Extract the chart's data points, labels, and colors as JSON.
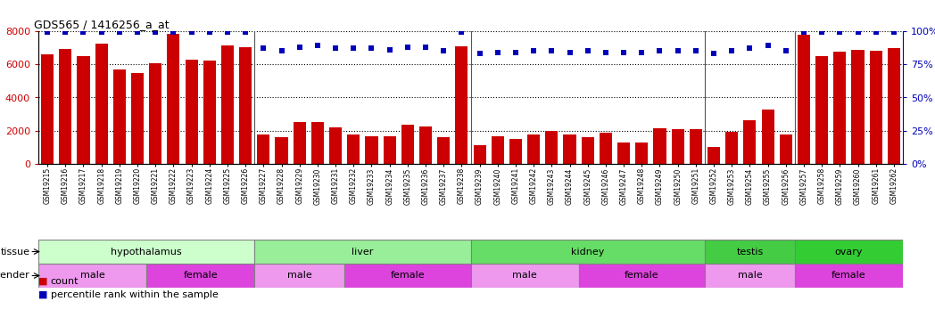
{
  "title": "GDS565 / 1416256_a_at",
  "samples": [
    "GSM19215",
    "GSM19216",
    "GSM19217",
    "GSM19218",
    "GSM19219",
    "GSM19220",
    "GSM19221",
    "GSM19222",
    "GSM19223",
    "GSM19224",
    "GSM19225",
    "GSM19226",
    "GSM19227",
    "GSM19228",
    "GSM19229",
    "GSM19230",
    "GSM19231",
    "GSM19232",
    "GSM19233",
    "GSM19234",
    "GSM19235",
    "GSM19236",
    "GSM19237",
    "GSM19238",
    "GSM19239",
    "GSM19240",
    "GSM19241",
    "GSM19242",
    "GSM19243",
    "GSM19244",
    "GSM19245",
    "GSM19246",
    "GSM19247",
    "GSM19248",
    "GSM19249",
    "GSM19250",
    "GSM19251",
    "GSM19252",
    "GSM19253",
    "GSM19254",
    "GSM19255",
    "GSM19256",
    "GSM19257",
    "GSM19258",
    "GSM19259",
    "GSM19260",
    "GSM19261",
    "GSM19262"
  ],
  "counts": [
    6600,
    6900,
    6500,
    7250,
    5700,
    5500,
    6050,
    7850,
    6300,
    6250,
    7150,
    7050,
    1750,
    1600,
    2500,
    2550,
    2200,
    1750,
    1650,
    1650,
    2350,
    2250,
    1600,
    7100,
    1150,
    1650,
    1500,
    1750,
    2000,
    1750,
    1600,
    1900,
    1300,
    1300,
    2150,
    2100,
    2100,
    1000,
    1950,
    2650,
    3300,
    1750,
    7800,
    6500,
    6750,
    6850,
    6800,
    7000
  ],
  "percentiles": [
    99,
    99,
    99,
    99,
    99,
    99,
    99,
    99,
    99,
    99,
    99,
    99,
    87,
    85,
    88,
    89,
    87,
    87,
    87,
    86,
    88,
    88,
    85,
    99,
    83,
    84,
    84,
    85,
    85,
    84,
    85,
    84,
    84,
    84,
    85,
    85,
    85,
    83,
    85,
    87,
    89,
    85,
    99,
    99,
    99,
    99,
    99,
    99
  ],
  "bar_color": "#cc0000",
  "dot_color": "#0000bb",
  "ylim_left": [
    0,
    8000
  ],
  "ylim_right": [
    0,
    100
  ],
  "yticks_left": [
    0,
    2000,
    4000,
    6000,
    8000
  ],
  "yticks_right": [
    0,
    25,
    50,
    75,
    100
  ],
  "tissue_groups": [
    {
      "label": "hypothalamus",
      "start": 0,
      "end": 12,
      "color": "#ccffcc"
    },
    {
      "label": "liver",
      "start": 12,
      "end": 24,
      "color": "#99ee99"
    },
    {
      "label": "kidney",
      "start": 24,
      "end": 37,
      "color": "#66dd66"
    },
    {
      "label": "testis",
      "start": 37,
      "end": 42,
      "color": "#44cc44"
    },
    {
      "label": "ovary",
      "start": 42,
      "end": 48,
      "color": "#33cc33"
    }
  ],
  "gender_groups": [
    {
      "label": "male",
      "start": 0,
      "end": 6,
      "color": "#ee99ee"
    },
    {
      "label": "female",
      "start": 6,
      "end": 12,
      "color": "#dd44dd"
    },
    {
      "label": "male",
      "start": 12,
      "end": 17,
      "color": "#ee99ee"
    },
    {
      "label": "female",
      "start": 17,
      "end": 24,
      "color": "#dd44dd"
    },
    {
      "label": "male",
      "start": 24,
      "end": 30,
      "color": "#ee99ee"
    },
    {
      "label": "female",
      "start": 30,
      "end": 37,
      "color": "#dd44dd"
    },
    {
      "label": "male",
      "start": 37,
      "end": 42,
      "color": "#ee99ee"
    },
    {
      "label": "female",
      "start": 42,
      "end": 48,
      "color": "#dd44dd"
    }
  ],
  "separator_color": "#555555",
  "grid_dotted_color": "#000000",
  "xtick_bg": "#d8d8d8"
}
